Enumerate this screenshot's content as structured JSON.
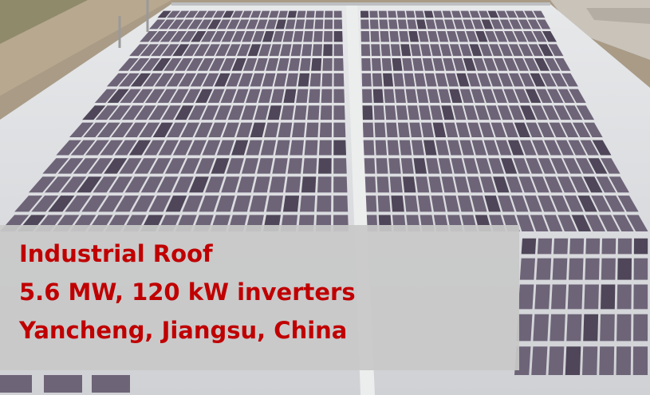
{
  "photo": {
    "subject": "rooftop-solar-array",
    "colors": {
      "sky_ground": "#a99b86",
      "roof": "#d9dbde",
      "panel": "#6e6478",
      "panel_dark": "#4f4659",
      "panel_gap": "#e4e4e6",
      "building": "#c9c3ba"
    }
  },
  "caption": {
    "color": "#c00000",
    "background": "#c8c8c8",
    "lines": [
      "Industrial Roof",
      "5.6 MW, 120 kW inverters",
      "Yancheng, Jiangsu, China"
    ]
  }
}
